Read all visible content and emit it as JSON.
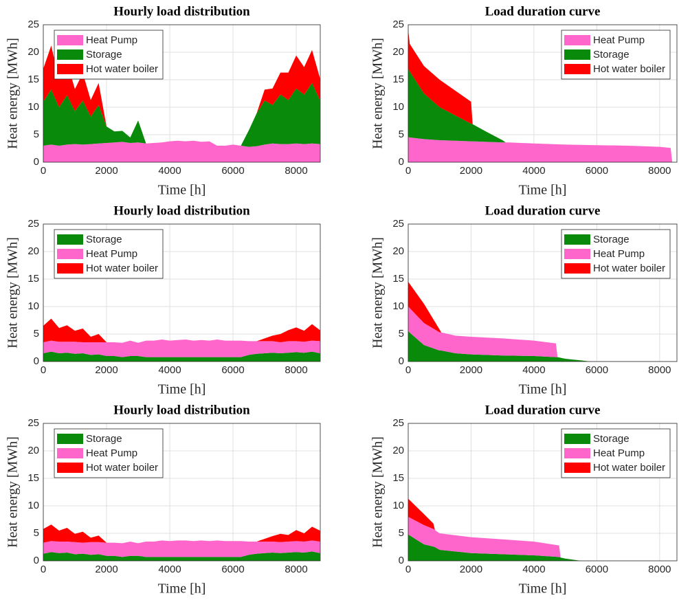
{
  "chart_data": [
    {
      "type": "area",
      "stacked": true,
      "title": "Hourly load distribution",
      "xlabel": "Time [h]",
      "ylabel": "Heat energy [MWh]",
      "x": [
        0,
        250,
        500,
        750,
        1000,
        1250,
        1500,
        1750,
        2000,
        2250,
        2500,
        2750,
        3000,
        3250,
        3500,
        3750,
        4000,
        4250,
        4500,
        4750,
        5000,
        5250,
        5500,
        5750,
        6000,
        6250,
        6500,
        6750,
        7000,
        7250,
        7500,
        7750,
        8000,
        8250,
        8500,
        8750
      ],
      "series": [
        {
          "name": "Heat Pump",
          "color": "#ff66cc",
          "values": [
            3,
            3.2,
            3,
            3.2,
            3.3,
            3.2,
            3.3,
            3.4,
            3.5,
            3.6,
            3.7,
            3.5,
            3.6,
            3.4,
            3.5,
            3.6,
            3.8,
            3.9,
            3.8,
            3.9,
            3.7,
            3.8,
            3,
            3,
            3.2,
            3,
            2.8,
            2.9,
            3.2,
            3.4,
            3.3,
            3.3,
            3.4,
            3.3,
            3.4,
            3.3
          ]
        },
        {
          "name": "Storage",
          "color": "#0a8a0a",
          "values": [
            8,
            10,
            7,
            9,
            6,
            8,
            5,
            7,
            3,
            2,
            2,
            1,
            4,
            0,
            0,
            0,
            0,
            0,
            0,
            0,
            0,
            0,
            0,
            0,
            0,
            0,
            3,
            6,
            8,
            7,
            9,
            8,
            10,
            9,
            11,
            8
          ]
        },
        {
          "name": "Hot water boiler",
          "color": "#ff0000",
          "values": [
            6,
            8,
            5,
            6,
            4,
            5,
            3,
            4,
            0,
            0,
            0,
            0,
            0,
            0,
            0,
            0,
            0,
            0,
            0,
            0,
            0,
            0,
            0,
            0,
            0,
            0,
            0,
            0,
            2,
            3,
            4,
            5,
            6,
            5,
            6,
            4
          ]
        }
      ],
      "xlim": [
        0,
        8760
      ],
      "ylim": [
        0,
        25
      ],
      "xticks": [
        0,
        2000,
        4000,
        6000,
        8000
      ],
      "yticks": [
        0,
        5,
        10,
        15,
        20,
        25
      ],
      "grid": true,
      "legend": "upper left"
    },
    {
      "type": "area",
      "stacked": true,
      "title": "Load duration curve",
      "xlabel": "Time [h]",
      "ylabel": "Heat energy [MWh]",
      "x": [
        0,
        50,
        500,
        1000,
        1500,
        2000,
        2050,
        2500,
        3000,
        3100,
        3200,
        4000,
        5000,
        6000,
        7000,
        8000,
        8350,
        8400
      ],
      "series": [
        {
          "name": "Heat Pump",
          "color": "#ff66cc",
          "values": [
            4.6,
            4.5,
            4.2,
            4.0,
            3.9,
            3.8,
            3.8,
            3.7,
            3.6,
            3.6,
            3.6,
            3.4,
            3.2,
            3.1,
            3.0,
            2.8,
            2.6,
            0
          ]
        },
        {
          "name": "Storage",
          "color": "#0a8a0a",
          "values": [
            12.4,
            12,
            8.3,
            6,
            4.6,
            3.2,
            3.1,
            1.8,
            0.4,
            0,
            0,
            0,
            0,
            0,
            0,
            0,
            0,
            0
          ]
        },
        {
          "name": "Hot water boiler",
          "color": "#ff0000",
          "values": [
            7,
            5,
            5,
            5,
            4.5,
            4,
            0,
            0,
            0,
            0,
            0,
            0,
            0,
            0,
            0,
            0,
            0,
            0
          ]
        }
      ],
      "xlim": [
        0,
        8550
      ],
      "ylim": [
        0,
        25
      ],
      "xticks": [
        0,
        2000,
        4000,
        6000,
        8000
      ],
      "yticks": [
        0,
        5,
        10,
        15,
        20,
        25
      ],
      "grid": true,
      "legend": "upper right"
    },
    {
      "type": "area",
      "stacked": true,
      "title": "Hourly load distribution",
      "xlabel": "Time [h]",
      "ylabel": "Heat energy [MWh]",
      "x": [
        0,
        250,
        500,
        750,
        1000,
        1250,
        1500,
        1750,
        2000,
        2250,
        2500,
        2750,
        3000,
        3250,
        3500,
        3750,
        4000,
        4250,
        4500,
        4750,
        5000,
        5250,
        5500,
        5750,
        6000,
        6250,
        6500,
        6750,
        7000,
        7250,
        7500,
        7750,
        8000,
        8250,
        8500,
        8750
      ],
      "series": [
        {
          "name": "Storage",
          "color": "#0a8a0a",
          "values": [
            1.5,
            1.8,
            1.5,
            1.6,
            1.4,
            1.5,
            1.2,
            1.3,
            1,
            1,
            0.8,
            1,
            1,
            0.8,
            0.8,
            0.8,
            0.8,
            0.8,
            0.8,
            0.8,
            0.8,
            0.8,
            0.8,
            0.8,
            0.8,
            0.8,
            1.2,
            1.4,
            1.5,
            1.6,
            1.5,
            1.6,
            1.7,
            1.6,
            1.8,
            1.5
          ]
        },
        {
          "name": "Heat Pump",
          "color": "#ff66cc",
          "values": [
            2,
            2,
            2.1,
            2,
            2.2,
            2,
            2.3,
            2.2,
            2.5,
            2.5,
            2.6,
            2.8,
            2.4,
            3,
            3,
            3.2,
            3,
            3.1,
            3.2,
            3,
            3.1,
            3,
            3.2,
            3,
            3,
            3,
            2.5,
            2.3,
            2.2,
            2.1,
            2,
            2.1,
            2,
            2,
            2,
            2.2
          ]
        },
        {
          "name": "Hot water boiler",
          "color": "#ff0000",
          "values": [
            3,
            4,
            2.5,
            3,
            2,
            2.5,
            1,
            1.5,
            0,
            0,
            0,
            0,
            0,
            0,
            0,
            0,
            0,
            0,
            0,
            0,
            0,
            0,
            0,
            0,
            0,
            0,
            0,
            0,
            0.5,
            1,
            1.5,
            2,
            2.5,
            2,
            3,
            2
          ]
        }
      ],
      "xlim": [
        0,
        8760
      ],
      "ylim": [
        0,
        25
      ],
      "xticks": [
        0,
        2000,
        4000,
        6000,
        8000
      ],
      "yticks": [
        0,
        5,
        10,
        15,
        20,
        25
      ],
      "grid": true,
      "legend": "upper left"
    },
    {
      "type": "area",
      "stacked": true,
      "title": "Load duration curve",
      "xlabel": "Time [h]",
      "ylabel": "Heat energy [MWh]",
      "x": [
        0,
        500,
        1000,
        1050,
        1500,
        2000,
        3000,
        4000,
        4700,
        4750,
        5000,
        5500,
        5800,
        8400
      ],
      "series": [
        {
          "name": "Storage",
          "color": "#0a8a0a",
          "values": [
            5.5,
            3,
            2,
            2,
            1.5,
            1.3,
            1.1,
            1,
            0.8,
            0.8,
            0.5,
            0.2,
            0,
            0
          ]
        },
        {
          "name": "Heat Pump",
          "color": "#ff66cc",
          "values": [
            4.5,
            4,
            3.3,
            3.3,
            3.2,
            3.2,
            3.1,
            2.8,
            2.5,
            0,
            0,
            0,
            0,
            0
          ]
        },
        {
          "name": "Hot water boiler",
          "color": "#ff0000",
          "values": [
            4.5,
            3.5,
            0.5,
            0,
            0,
            0,
            0,
            0,
            0,
            0,
            0,
            0,
            0,
            0
          ]
        }
      ],
      "xlim": [
        0,
        8550
      ],
      "ylim": [
        0,
        25
      ],
      "xticks": [
        0,
        2000,
        4000,
        6000,
        8000
      ],
      "yticks": [
        0,
        5,
        10,
        15,
        20,
        25
      ],
      "grid": true,
      "legend": "upper right"
    },
    {
      "type": "area",
      "stacked": true,
      "title": "Hourly load distribution",
      "xlabel": "Time [h]",
      "ylabel": "Heat energy [MWh]",
      "x": [
        0,
        250,
        500,
        750,
        1000,
        1250,
        1500,
        1750,
        2000,
        2250,
        2500,
        2750,
        3000,
        3250,
        3500,
        3750,
        4000,
        4250,
        4500,
        4750,
        5000,
        5250,
        5500,
        5750,
        6000,
        6250,
        6500,
        6750,
        7000,
        7250,
        7500,
        7750,
        8000,
        8250,
        8500,
        8750
      ],
      "series": [
        {
          "name": "Storage",
          "color": "#0a8a0a",
          "values": [
            1.3,
            1.6,
            1.4,
            1.5,
            1.2,
            1.3,
            1.1,
            1.2,
            0.9,
            0.9,
            0.7,
            0.9,
            0.9,
            0.7,
            0.7,
            0.7,
            0.7,
            0.7,
            0.7,
            0.7,
            0.7,
            0.7,
            0.7,
            0.7,
            0.7,
            0.7,
            1.1,
            1.3,
            1.4,
            1.5,
            1.4,
            1.5,
            1.6,
            1.5,
            1.7,
            1.4
          ]
        },
        {
          "name": "Heat Pump",
          "color": "#ff66cc",
          "values": [
            2,
            2,
            2.1,
            2,
            2.2,
            2,
            2.3,
            2.2,
            2.4,
            2.4,
            2.5,
            2.6,
            2.3,
            2.8,
            2.8,
            3,
            2.9,
            3,
            3,
            2.9,
            3,
            2.9,
            3,
            2.9,
            2.9,
            2.9,
            2.4,
            2.2,
            2.1,
            2,
            2,
            2,
            2,
            2,
            2,
            2.1
          ]
        },
        {
          "name": "Hot water boiler",
          "color": "#ff0000",
          "values": [
            2.5,
            3,
            2,
            2.5,
            1.5,
            2,
            0.8,
            1.2,
            0,
            0,
            0,
            0,
            0,
            0,
            0,
            0,
            0,
            0,
            0,
            0,
            0,
            0,
            0,
            0,
            0,
            0,
            0,
            0,
            0.5,
            1,
            1.5,
            1.2,
            2,
            1.5,
            2.5,
            2
          ]
        }
      ],
      "xlim": [
        0,
        8760
      ],
      "ylim": [
        0,
        25
      ],
      "xticks": [
        0,
        2000,
        4000,
        6000,
        8000
      ],
      "yticks": [
        0,
        5,
        10,
        15,
        20,
        25
      ],
      "grid": true,
      "legend": "upper left"
    },
    {
      "type": "area",
      "stacked": true,
      "title": "Load duration curve",
      "xlabel": "Time [h]",
      "ylabel": "Heat energy [MWh]",
      "x": [
        0,
        500,
        800,
        850,
        1000,
        2000,
        3000,
        4000,
        4800,
        4850,
        5000,
        5500,
        8400
      ],
      "series": [
        {
          "name": "Storage",
          "color": "#0a8a0a",
          "values": [
            4.8,
            3,
            2.6,
            2.5,
            2,
            1.4,
            1.2,
            1,
            0.7,
            0.6,
            0.4,
            0,
            0
          ]
        },
        {
          "name": "Heat Pump",
          "color": "#ff66cc",
          "values": [
            3.2,
            3.5,
            3.2,
            3.1,
            3,
            2.9,
            2.7,
            2.5,
            2.1,
            0,
            0,
            0,
            0
          ]
        },
        {
          "name": "Hot water boiler",
          "color": "#ff0000",
          "values": [
            3.3,
            2,
            1,
            0,
            0,
            0,
            0,
            0,
            0,
            0,
            0,
            0,
            0
          ]
        }
      ],
      "xlim": [
        0,
        8550
      ],
      "ylim": [
        0,
        25
      ],
      "xticks": [
        0,
        2000,
        4000,
        6000,
        8000
      ],
      "yticks": [
        0,
        5,
        10,
        15,
        20,
        25
      ],
      "grid": true,
      "legend": "upper right"
    }
  ]
}
